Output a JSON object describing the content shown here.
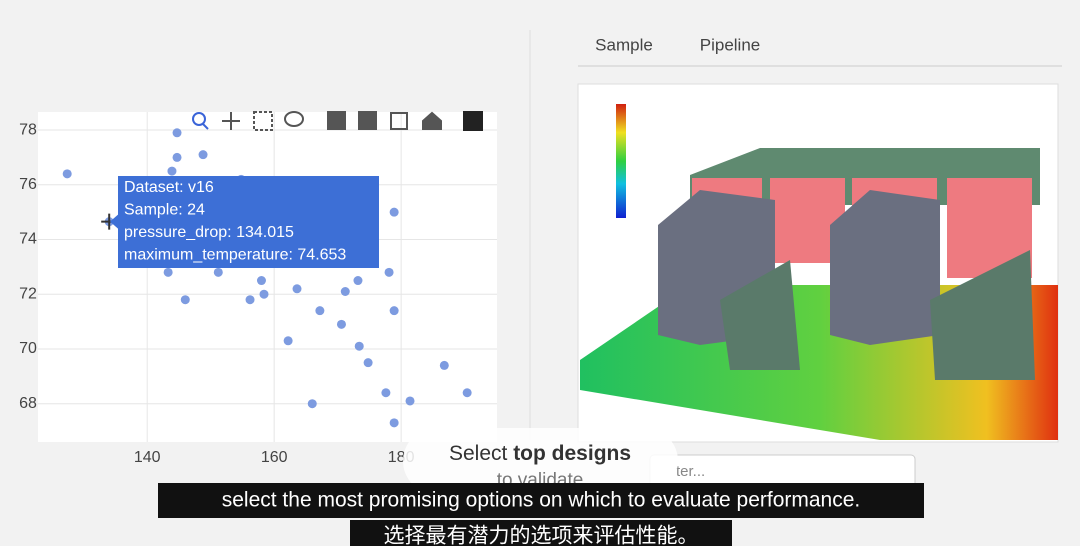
{
  "chart_data": {
    "type": "scatter",
    "x": [
      127.4,
      144.7,
      144.7,
      148.8,
      143.9,
      143.3,
      146.0,
      151.2,
      154.8,
      158.0,
      156.2,
      158.4,
      163.6,
      162.2,
      167.2,
      170.6,
      171.2,
      173.2,
      173.4,
      174.8,
      178.1,
      178.9,
      178.9,
      177.6,
      166.0,
      178.9,
      181.4,
      186.8,
      190.4,
      134.015
    ],
    "values": [
      76.4,
      77.9,
      77.0,
      77.1,
      76.5,
      72.8,
      71.8,
      72.8,
      76.2,
      72.5,
      71.8,
      72.0,
      72.2,
      70.3,
      71.4,
      70.9,
      72.1,
      72.5,
      70.1,
      69.5,
      72.8,
      75.0,
      71.4,
      68.4,
      68.0,
      67.3,
      68.1,
      69.4,
      68.4,
      74.653
    ],
    "color": "#7d9be0",
    "xlim": [
      122.8,
      195.1
    ],
    "ylim": [
      66.6,
      78.66
    ],
    "xticks": [
      140,
      160,
      180
    ],
    "yticks": [
      68,
      70,
      72,
      74,
      76,
      78
    ],
    "grid": true
  },
  "tabs": [
    "Sample",
    "Pipeline"
  ],
  "tooltip": [
    "Dataset: v16",
    "Sample: 24",
    "pressure_drop: 134.015",
    "maximum_temperature: 74.653"
  ],
  "filter_placeholder": "ter...",
  "overlay": {
    "start": "Select",
    "bold": "top designs",
    "line2": "to validate"
  },
  "subtitles": [
    "select the most promising options  on which to evaluate performance.",
    "选择最有潜力的选项来评估性能。"
  ]
}
